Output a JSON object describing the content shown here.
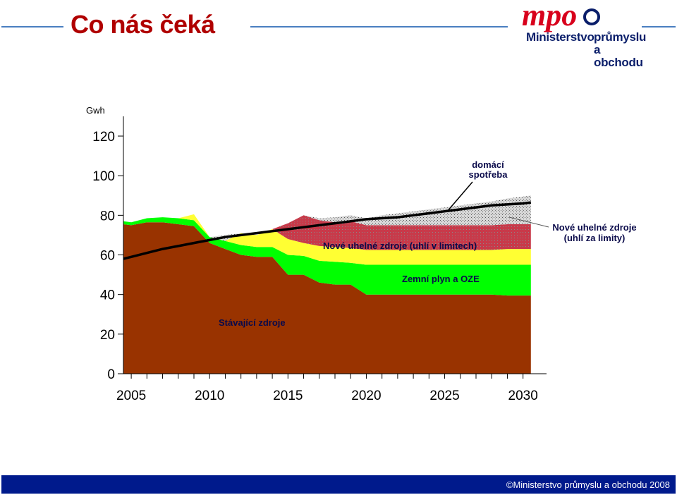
{
  "slide": {
    "title": "Co nás čeká",
    "footer": "©Ministerstvo průmyslu a obchodu 2008"
  },
  "logo": {
    "letters": "mpo",
    "line1": "Ministerstvo",
    "line2a": "průmyslu",
    "line2b": "a obchodu",
    "color_red": "#d8001c",
    "color_blue": "#0a1e6a"
  },
  "chart_data": {
    "type": "area",
    "yunit": "Gwh",
    "x": [
      2004.5,
      2005,
      2006,
      2007,
      2008,
      2009,
      2010,
      2011,
      2012,
      2013,
      2014,
      2015,
      2016,
      2017,
      2018,
      2019,
      2020,
      2021,
      2022,
      2023,
      2024,
      2025,
      2026,
      2027,
      2028,
      2029,
      2030,
      2030.5
    ],
    "xlim": [
      2004.5,
      2031.5
    ],
    "ylim": [
      0,
      120
    ],
    "xticks": [
      2005,
      2010,
      2015,
      2020,
      2025,
      2030
    ],
    "yticks": [
      0,
      20,
      40,
      60,
      80,
      100,
      120
    ],
    "series": [
      {
        "name": "Stávající zdroje",
        "color": "#993300",
        "values": [
          75.5,
          75,
          76.5,
          76.5,
          75.5,
          74.5,
          66,
          63,
          60,
          59,
          59,
          50,
          50,
          46,
          45,
          45,
          40,
          40,
          40,
          40,
          40,
          40,
          40,
          40,
          40,
          39.5,
          39.5,
          39.5
        ]
      },
      {
        "name": "Zemní plyn a OZE",
        "color": "#00ff00",
        "values": [
          1.5,
          1.5,
          2,
          2.5,
          3,
          3,
          3,
          4,
          5,
          5,
          5,
          10,
          9.5,
          11,
          11.5,
          11,
          15,
          15,
          15,
          15,
          15,
          15,
          15,
          15,
          15,
          15.5,
          15.5,
          15.5
        ]
      },
      {
        "name": "Nové uhelné zdroje (uhlí v limitech)",
        "color": "#ffff33",
        "values": [
          0,
          0,
          0,
          0,
          0,
          3,
          0,
          0,
          6,
          6,
          9,
          8,
          6.5,
          7.5,
          7.5,
          7.5,
          7.5,
          7.5,
          7.5,
          7.5,
          7.5,
          7.5,
          7.5,
          7.5,
          7.5,
          8,
          8,
          8
        ]
      },
      {
        "name": "Nové uhelné zdroje (uhlí za limity)",
        "color": "#cc3344",
        "values": [
          0,
          0,
          0,
          0,
          0,
          0,
          0,
          0,
          0,
          0,
          0,
          8,
          14,
          13,
          12.5,
          13.5,
          12.5,
          12.5,
          12.5,
          12.5,
          12.5,
          12.5,
          12.5,
          12.5,
          12.5,
          12.5,
          12.5,
          12.5
        ]
      },
      {
        "name": "",
        "color": "#b0b0b0",
        "values": [
          0,
          0,
          0,
          0,
          0,
          0,
          0,
          3,
          0,
          0,
          0,
          0,
          0,
          1,
          2.5,
          3,
          3.5,
          5,
          6,
          7,
          8,
          9,
          10,
          11,
          12,
          13,
          14,
          14.5
        ]
      }
    ],
    "line": {
      "name": "domácí spotřeba",
      "color": "#000000",
      "values": [
        58,
        59,
        61,
        63,
        64.5,
        66,
        67.5,
        69,
        70,
        71,
        72,
        73,
        74,
        75,
        76,
        77,
        78,
        78.5,
        79,
        80,
        81,
        82,
        83,
        84,
        85,
        85.5,
        86,
        86.5
      ]
    },
    "labels": {
      "line_label_1": "domácí",
      "line_label_2": "spotřeba",
      "coal_in_limits": "Nové uhelné zdroje (uhlí v limitech)",
      "gas_res": "Zemní plyn a OZE",
      "existing": "Stávající zdroje",
      "coal_over_1": "Nové uhelné zdroje",
      "coal_over_2": "(uhlí za limity)"
    }
  }
}
